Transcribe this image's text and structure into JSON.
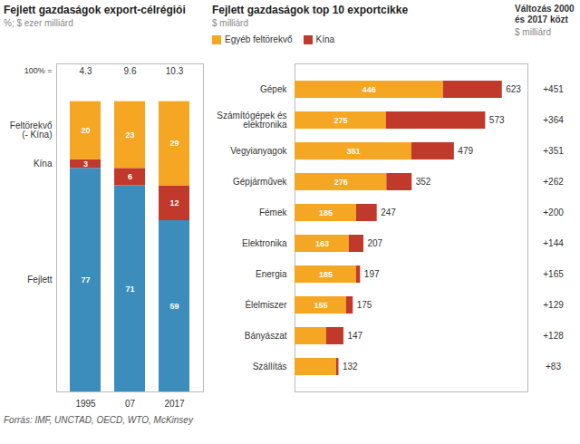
{
  "source": "Forrás: IMF, UNCTAD, OECD, WTO, McKinsey",
  "chart_data": [
    {
      "type": "bar",
      "stacked": true,
      "data_labels": true,
      "tick_labels": "x",
      "title": "Fejlett gazdaságok export-célrégiói",
      "subtitle": "%;  $  ezer milliárd",
      "categories": [
        "1995",
        "07",
        "2017"
      ],
      "series": [
        {
          "name": "Fejlett",
          "color": "#3c8dbc",
          "values": [
            77,
            71,
            59
          ]
        },
        {
          "name": "Kína",
          "color": "#c0392b",
          "values": [
            3,
            6,
            12
          ]
        },
        {
          "name": "Feltörekvő\n(- Kína)",
          "color": "#f5a623",
          "values": [
            20,
            23,
            29
          ]
        }
      ],
      "totals_label": "100% =",
      "totals": [
        4.3,
        9.6,
        10.3
      ],
      "ylim": [
        0,
        113
      ]
    },
    {
      "type": "bar",
      "orientation": "horizontal",
      "stacked": true,
      "tick_labels": "y",
      "legend": "top-left",
      "title": "Fejlett gazdaságok top 10 exportcikke",
      "subtitle": "$  milliárd",
      "categories": [
        "Gépek",
        "Számítógépek és\nelektronika",
        "Vegyianyagok",
        "Gépjárművek",
        "Fémek",
        "Elektronika",
        "Energia",
        "Élelmiszer",
        "Bányászat",
        "Szállítás"
      ],
      "series": [
        {
          "name": "Egyéb feltörekvő",
          "color": "#f5a623",
          "data_labels": true,
          "values": [
            446,
            275,
            351,
            276,
            185,
            163,
            185,
            155,
            95,
            125
          ],
          "value_labels": [
            "446",
            "275",
            "351",
            "276",
            "185",
            "163",
            "185",
            "155",
            null,
            null
          ]
        },
        {
          "name": "Kína",
          "color": "#c0392b",
          "data_labels": false,
          "values": [
            177,
            298,
            128,
            76,
            62,
            44,
            12,
            20,
            52,
            7
          ]
        }
      ],
      "totals": [
        623,
        573,
        479,
        352,
        247,
        207,
        197,
        175,
        147,
        132
      ],
      "xlim": [
        0,
        700
      ],
      "changes": {
        "title": "Változás 2000\nés 2017 közt",
        "subtitle": "$  milliárd",
        "values": [
          451,
          364,
          351,
          262,
          200,
          144,
          165,
          129,
          128,
          83
        ],
        "value_labels": [
          "+451",
          "+364",
          "+351",
          "+262",
          "+200",
          "+144",
          "+165",
          "+129",
          "+128",
          "+83"
        ]
      }
    }
  ]
}
